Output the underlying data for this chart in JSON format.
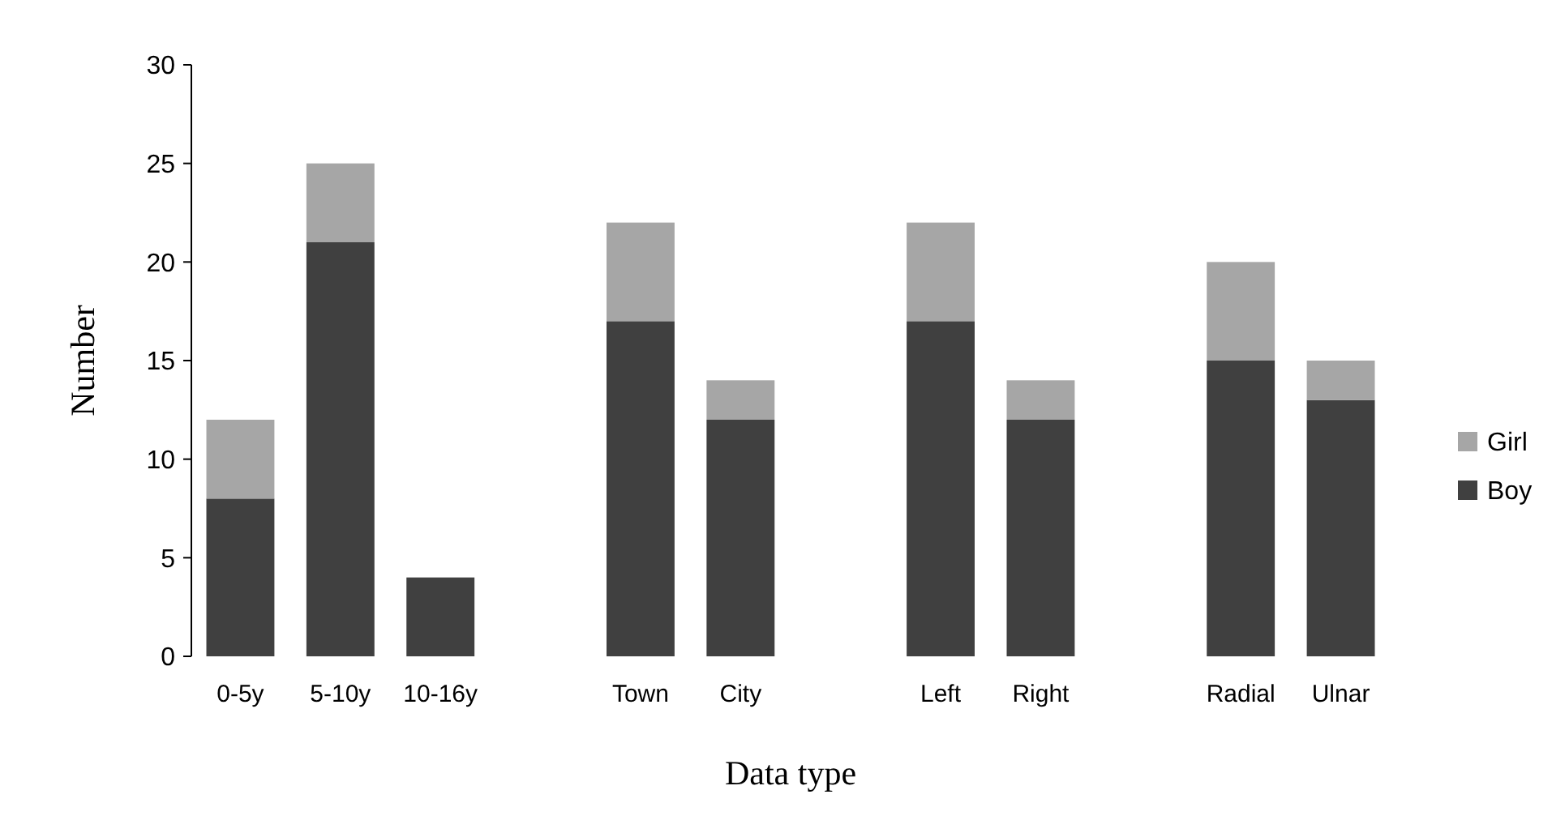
{
  "chart_data": {
    "type": "bar",
    "stacked": true,
    "xlabel": "Data type",
    "ylabel": "Number",
    "categories": [
      "0-5y",
      "5-10y",
      "10-16y",
      null,
      "Town",
      "City",
      null,
      "Left",
      "Right",
      null,
      "Radial",
      "Ulnar"
    ],
    "series": [
      {
        "name": "Boy",
        "color": "#404040",
        "values": [
          8,
          21,
          4,
          null,
          17,
          12,
          null,
          17,
          12,
          null,
          15,
          13
        ]
      },
      {
        "name": "Girl",
        "color": "#a6a6a6",
        "values": [
          4,
          4,
          0,
          null,
          5,
          2,
          null,
          5,
          2,
          null,
          5,
          2
        ]
      }
    ],
    "ylim": [
      0,
      30
    ],
    "yticks": [
      0,
      5,
      10,
      15,
      20,
      25,
      30
    ],
    "grid": false,
    "legend": "right"
  }
}
